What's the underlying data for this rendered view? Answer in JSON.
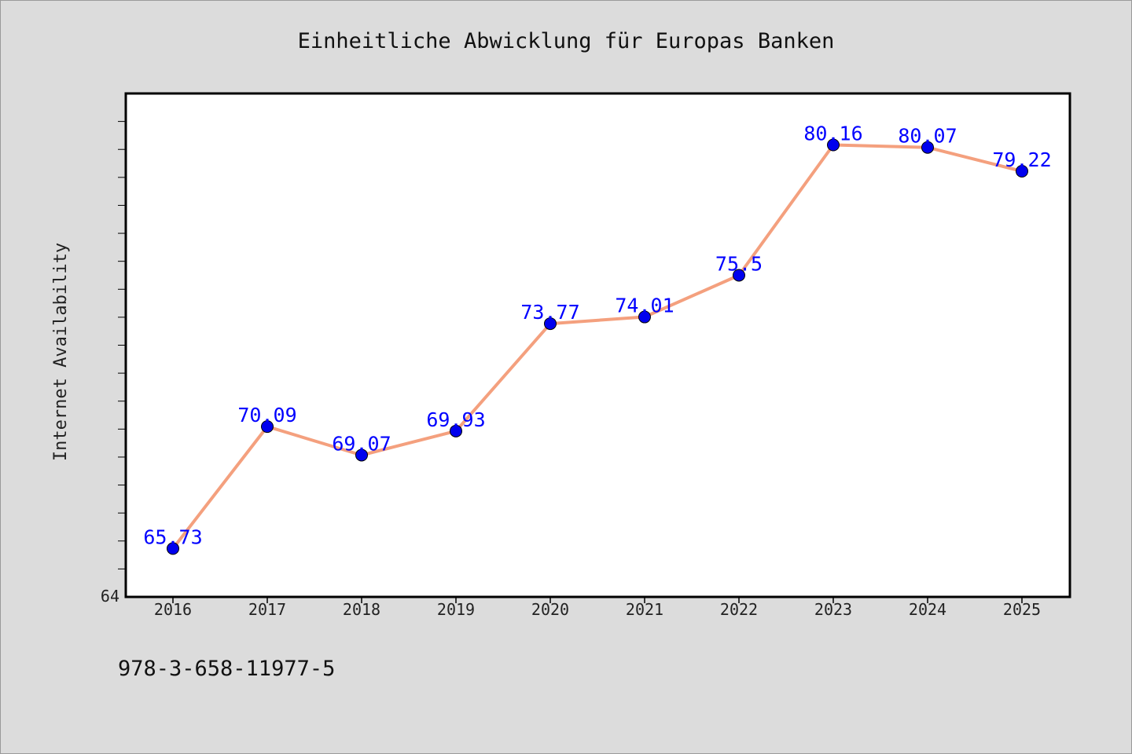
{
  "chart_data": {
    "type": "line",
    "title": "Einheitliche Abwicklung für Europas Banken",
    "xlabel": "",
    "ylabel": "Internet Availability",
    "categories": [
      "2016",
      "2017",
      "2018",
      "2019",
      "2020",
      "2021",
      "2022",
      "2023",
      "2024",
      "2025"
    ],
    "series": [
      {
        "values": [
          65.73,
          70.09,
          69.07,
          69.93,
          73.77,
          74.01,
          75.5,
          80.16,
          80.07,
          79.22
        ],
        "data_labels": [
          "65.73",
          "70.09",
          "69.07",
          "69.93",
          "73.77",
          "74.01",
          "75.5",
          "80.16",
          "80.07",
          "79.22"
        ]
      }
    ],
    "ylim": [
      64,
      82
    ],
    "y_tick_labels": [
      "64"
    ],
    "grid": false,
    "legend": "none",
    "colors": {
      "line": "#f4a07e",
      "marker": "#0000ee",
      "data_label": "#0000ff",
      "plot_background": "#ffffff",
      "figure_background": "#dcdcdc"
    }
  },
  "footer": {
    "isbn": "978-3-658-11977-5"
  }
}
